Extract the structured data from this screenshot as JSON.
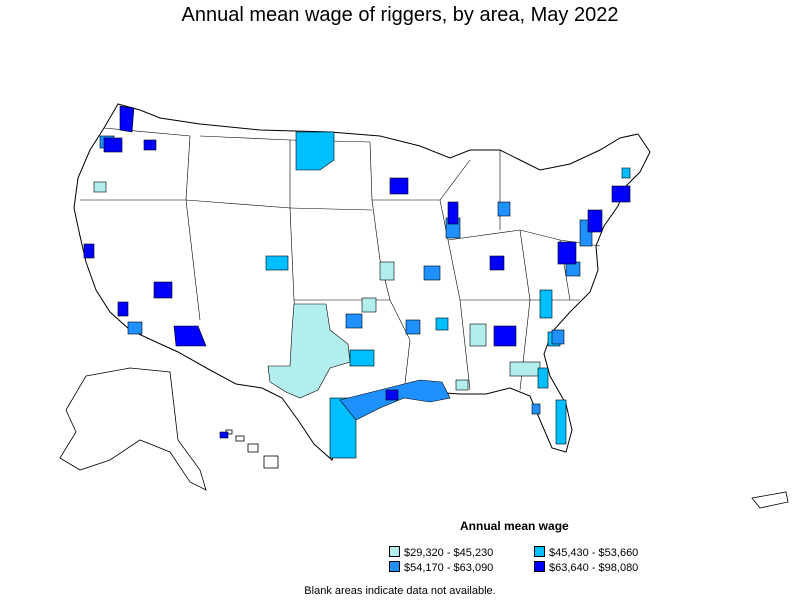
{
  "title": "Annual mean wage of riggers, by area, May 2022",
  "legend": {
    "title": "Annual mean wage",
    "items": [
      {
        "label": "$29,320 - $45,230",
        "color": "#b2eeee"
      },
      {
        "label": "$45,430 - $53,660",
        "color": "#00bfff"
      },
      {
        "label": "$54,170 - $63,090",
        "color": "#1e90ff"
      },
      {
        "label": "$63,640 - $98,080",
        "color": "#0000ff"
      }
    ]
  },
  "footnote": "Blank areas indicate data not available.",
  "colors": {
    "outline": "#000000",
    "background": "#ffffff"
  }
}
